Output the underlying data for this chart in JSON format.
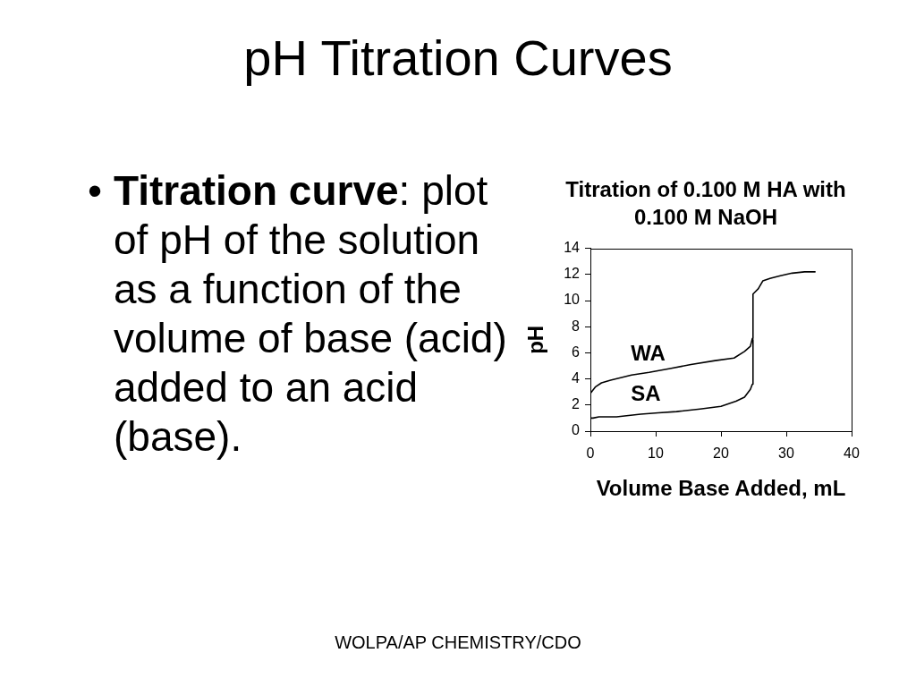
{
  "chart_data": {
    "type": "line",
    "title": "pH Titration Curves",
    "subtitle": "Titration of 0.100 M HA with 0.100 M NaOH",
    "xlabel": "Volume Base Added, mL",
    "ylabel": "pH",
    "series": [
      {
        "name": "WA",
        "color": "#000000",
        "x": [
          0,
          0.8,
          1.7,
          3.1,
          6.3,
          9.0,
          12.2,
          15.4,
          19.1,
          22.0,
          23.6,
          24.5,
          24.8,
          24.9,
          25.1,
          25.7,
          26.4,
          27.5,
          29.1,
          30.9,
          32.8,
          34.4
        ],
        "values": [
          2.9,
          3.4,
          3.7,
          3.9,
          4.3,
          4.5,
          4.8,
          5.1,
          5.4,
          5.6,
          6.1,
          6.5,
          7.1,
          10.5,
          10.6,
          10.9,
          11.5,
          11.7,
          11.9,
          12.1,
          12.2,
          12.2
        ]
      },
      {
        "name": "SA",
        "color": "#000000",
        "x": [
          0,
          0.4,
          1.3,
          4.0,
          7.7,
          10.4,
          13.2,
          16.8,
          20.0,
          22.3,
          23.6,
          24.5,
          24.8,
          24.9
        ],
        "values": [
          1.0,
          1.0,
          1.1,
          1.1,
          1.3,
          1.4,
          1.5,
          1.7,
          1.9,
          2.3,
          2.6,
          3.2,
          3.6,
          7.0
        ]
      }
    ],
    "xlim": [
      0,
      40
    ],
    "xticks": [
      0,
      10,
      20,
      30,
      40
    ],
    "ylim": [
      0,
      14
    ],
    "yticks": [
      0,
      2,
      4,
      6,
      8,
      10,
      12,
      14
    ],
    "annotations": [
      "• Titration curve: plot of pH of the solution as a function of the volume of base (acid) added to an acid (base).",
      "WOLPA/AP CHEMISTRY/CDO"
    ]
  }
}
